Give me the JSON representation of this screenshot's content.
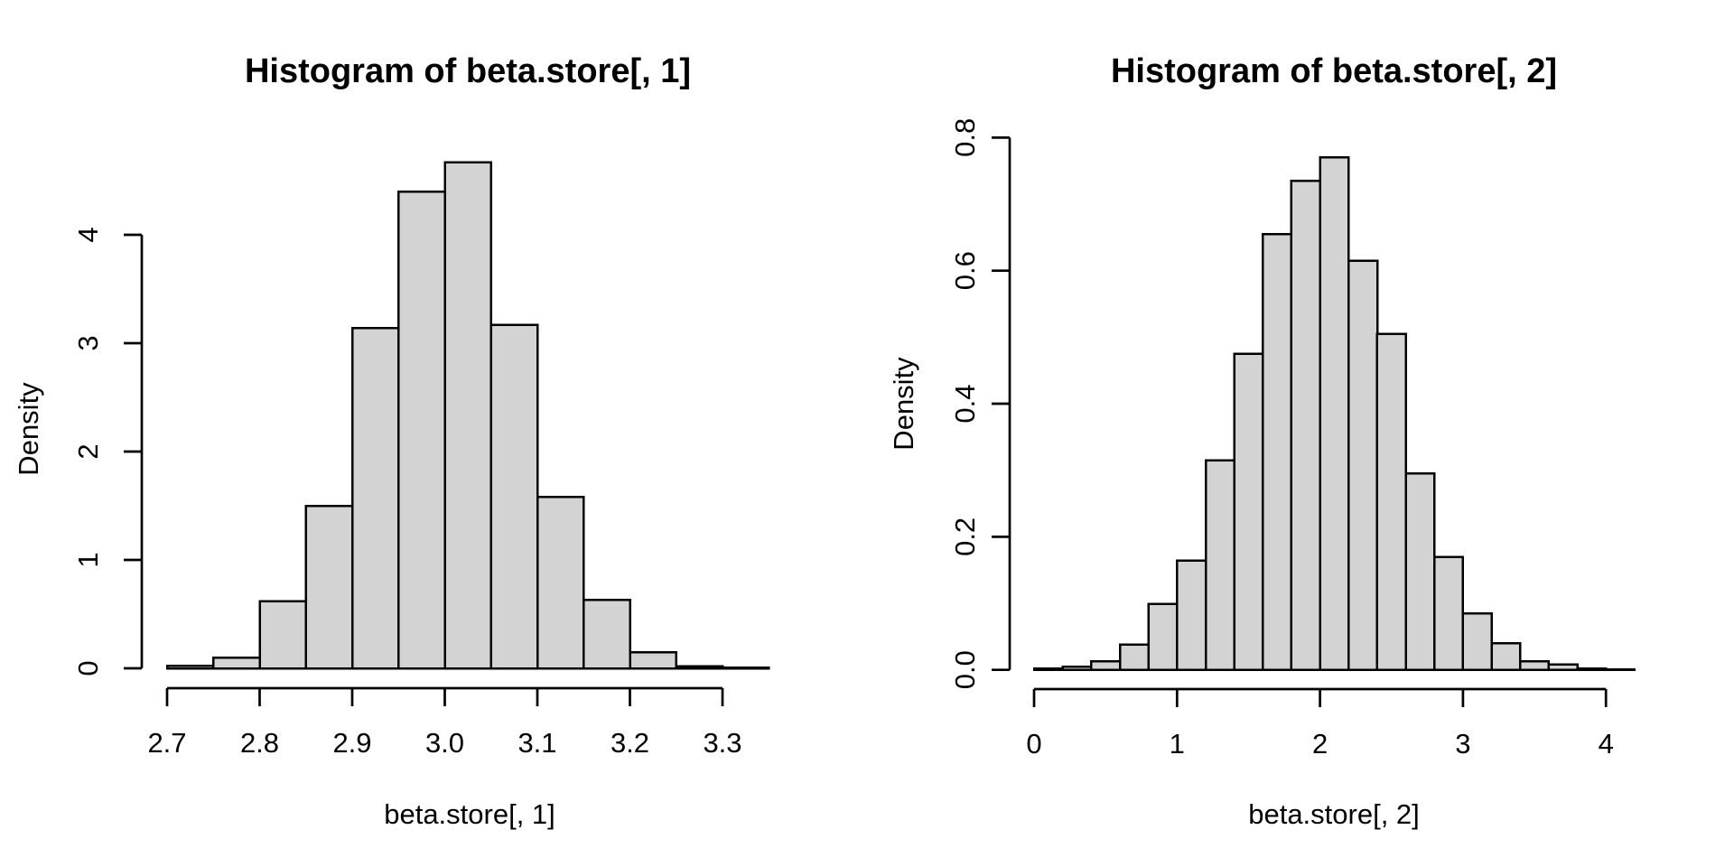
{
  "figure": {
    "background": "#ffffff",
    "bar_fill": "#d3d3d3",
    "bar_stroke": "#000000",
    "axis_color": "#000000"
  },
  "chart_data": [
    {
      "type": "bar",
      "subtype": "histogram",
      "title": "Histogram of beta.store[, 1]",
      "xlabel": "beta.store[, 1]",
      "ylabel": "Density",
      "bin_start": 2.7,
      "bin_width": 0.05,
      "bin_count": 13,
      "densities": [
        0.025,
        0.1,
        0.62,
        1.5,
        3.14,
        4.4,
        4.67,
        3.17,
        1.58,
        0.63,
        0.15,
        0.02,
        0.005
      ],
      "x_ticks": [
        "2.7",
        "2.8",
        "2.9",
        "3.0",
        "3.1",
        "3.2",
        "3.3"
      ],
      "x_tick_values": [
        2.7,
        2.8,
        2.9,
        3.0,
        3.1,
        3.2,
        3.3
      ],
      "y_ticks": [
        "0",
        "1",
        "2",
        "3",
        "4"
      ],
      "y_tick_values": [
        0,
        1,
        2,
        3,
        4
      ],
      "xlim": [
        2.7,
        3.35
      ],
      "ylim": [
        0,
        4.67
      ],
      "grid": false,
      "legend": "none"
    },
    {
      "type": "bar",
      "subtype": "histogram",
      "title": "Histogram of beta.store[, 2]",
      "xlabel": "beta.store[, 2]",
      "ylabel": "Density",
      "bin_start": 0.0,
      "bin_width": 0.2,
      "bin_count": 21,
      "densities": [
        0.002,
        0.005,
        0.013,
        0.038,
        0.099,
        0.164,
        0.315,
        0.475,
        0.655,
        0.735,
        0.77,
        0.615,
        0.505,
        0.295,
        0.17,
        0.085,
        0.04,
        0.013,
        0.008,
        0.002,
        0.001
      ],
      "x_ticks": [
        "0",
        "1",
        "2",
        "3",
        "4"
      ],
      "x_tick_values": [
        0,
        1,
        2,
        3,
        4
      ],
      "y_ticks": [
        "0.0",
        "0.2",
        "0.4",
        "0.6",
        "0.8"
      ],
      "y_tick_values": [
        0.0,
        0.2,
        0.4,
        0.6,
        0.8
      ],
      "xlim": [
        0.0,
        4.2
      ],
      "ylim": [
        0,
        0.77
      ],
      "grid": false,
      "legend": "none"
    }
  ]
}
